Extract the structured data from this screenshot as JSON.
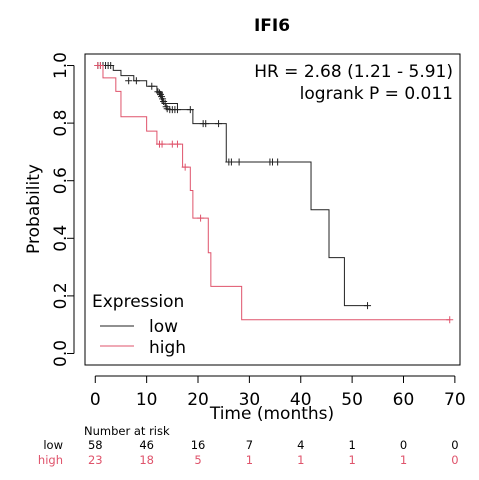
{
  "chart_data": {
    "type": "line",
    "title": "IFI6",
    "xlabel": "Time (months)",
    "ylabel": "Probability",
    "xlim": [
      -2,
      71
    ],
    "ylim": [
      -0.04,
      1.04
    ],
    "x_ticks": [
      0,
      10,
      20,
      30,
      40,
      50,
      60,
      70
    ],
    "y_ticks": [
      0.0,
      0.2,
      0.4,
      0.6,
      0.8,
      1.0
    ],
    "y_tick_labels": [
      "0.0",
      "0.2",
      "0.4",
      "0.6",
      "0.8",
      "1.0"
    ],
    "annotations": [
      "HR = 2.68 (1.21 - 5.91)",
      "logrank P = 0.011"
    ],
    "legend": {
      "title": "Expression",
      "placement": "bottom-left",
      "entries": [
        "low",
        "high"
      ]
    },
    "series": [
      {
        "name": "low",
        "color": "#222222",
        "steps": [
          [
            0,
            1.0
          ],
          [
            3.5,
            0.983
          ],
          [
            5.0,
            0.965
          ],
          [
            7.5,
            0.947
          ],
          [
            10.0,
            0.928
          ],
          [
            12.0,
            0.909
          ],
          [
            13.0,
            0.868
          ],
          [
            16.0,
            0.847
          ],
          [
            19.0,
            0.798
          ],
          [
            25.5,
            0.665
          ],
          [
            42.0,
            0.499
          ],
          [
            45.5,
            0.333
          ],
          [
            48.5,
            0.166
          ],
          [
            53,
            0.166
          ]
        ],
        "censors": [
          [
            0.5,
            1.0
          ],
          [
            1.0,
            1.0
          ],
          [
            1.5,
            1.0
          ],
          [
            2.0,
            1.0
          ],
          [
            2.5,
            1.0
          ],
          [
            3.0,
            1.0
          ],
          [
            6.5,
            0.947
          ],
          [
            8.0,
            0.947
          ],
          [
            11.0,
            0.928
          ],
          [
            12.2,
            0.909
          ],
          [
            12.5,
            0.905
          ],
          [
            12.7,
            0.9
          ],
          [
            12.9,
            0.892
          ],
          [
            13.1,
            0.884
          ],
          [
            13.3,
            0.875
          ],
          [
            13.6,
            0.868
          ],
          [
            13.8,
            0.857
          ],
          [
            14.0,
            0.85
          ],
          [
            14.5,
            0.847
          ],
          [
            15.0,
            0.847
          ],
          [
            15.5,
            0.847
          ],
          [
            16.0,
            0.847
          ],
          [
            18.5,
            0.847
          ],
          [
            21.0,
            0.798
          ],
          [
            21.5,
            0.798
          ],
          [
            24.0,
            0.798
          ],
          [
            26.0,
            0.665
          ],
          [
            26.5,
            0.665
          ],
          [
            28.0,
            0.665
          ],
          [
            34.0,
            0.665
          ],
          [
            34.5,
            0.665
          ],
          [
            35.5,
            0.665
          ],
          [
            53.0,
            0.166
          ]
        ]
      },
      {
        "name": "high",
        "color": "#df536b",
        "steps": [
          [
            0,
            1.0
          ],
          [
            1.5,
            0.957
          ],
          [
            4.0,
            0.91
          ],
          [
            5.0,
            0.822
          ],
          [
            10.0,
            0.772
          ],
          [
            12.0,
            0.727
          ],
          [
            16.0,
            0.727
          ],
          [
            17.0,
            0.647
          ],
          [
            18.5,
            0.566
          ],
          [
            19.0,
            0.47
          ],
          [
            22.0,
            0.35
          ],
          [
            22.5,
            0.233
          ],
          [
            28.5,
            0.117
          ],
          [
            69,
            0.117
          ]
        ],
        "censors": [
          [
            0.5,
            1.0
          ],
          [
            1.0,
            1.0
          ],
          [
            12.5,
            0.727
          ],
          [
            13.0,
            0.727
          ],
          [
            15.0,
            0.727
          ],
          [
            16.0,
            0.727
          ],
          [
            17.5,
            0.647
          ],
          [
            20.5,
            0.47
          ],
          [
            69.0,
            0.117
          ]
        ]
      }
    ],
    "risk_table": {
      "title": "Number at risk",
      "times": [
        0,
        10,
        20,
        30,
        40,
        50,
        60,
        70
      ],
      "rows": [
        {
          "label": "low",
          "color": "#000000",
          "counts": [
            "58",
            "46",
            "16",
            "7",
            "4",
            "1",
            "0",
            "0"
          ]
        },
        {
          "label": "high",
          "color": "#df536b",
          "counts": [
            "23",
            "18",
            "5",
            "1",
            "1",
            "1",
            "1",
            "0"
          ]
        }
      ]
    }
  }
}
